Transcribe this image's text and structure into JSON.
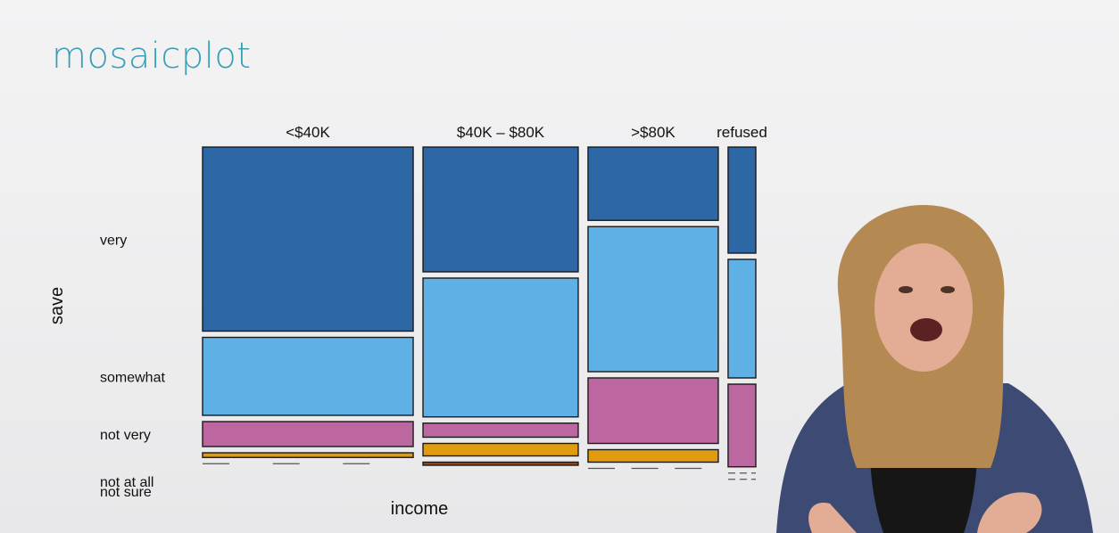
{
  "slide": {
    "title": "mosaicplot"
  },
  "chart_data": {
    "type": "mosaic",
    "xlabel": "income",
    "ylabel": "save",
    "categories": [
      "<$40K",
      "$40K – $80K",
      ">$80K",
      "refused"
    ],
    "column_widths": [
      0.38,
      0.28,
      0.235,
      0.05
    ],
    "series": [
      {
        "name": "very",
        "values": [
          0.59,
          0.4,
          0.235,
          0.34
        ]
      },
      {
        "name": "somewhat",
        "values": [
          0.25,
          0.445,
          0.465,
          0.38
        ]
      },
      {
        "name": "not very",
        "values": [
          0.08,
          0.045,
          0.21,
          0.265
        ]
      },
      {
        "name": "not at all",
        "values": [
          0.015,
          0.04,
          0.04,
          0.0
        ]
      },
      {
        "name": "not sure",
        "values": [
          0.0,
          0.01,
          0.0,
          0.0
        ]
      }
    ],
    "colors": {
      "very": "#2e67a6",
      "somewhat": "#5fb0e5",
      "not very": "#bd67a0",
      "not at all": "#e09c0e",
      "not sure": "#9a4a16"
    },
    "row_labels": [
      "very",
      "somewhat",
      "not very",
      "not at all",
      "not sure"
    ]
  }
}
